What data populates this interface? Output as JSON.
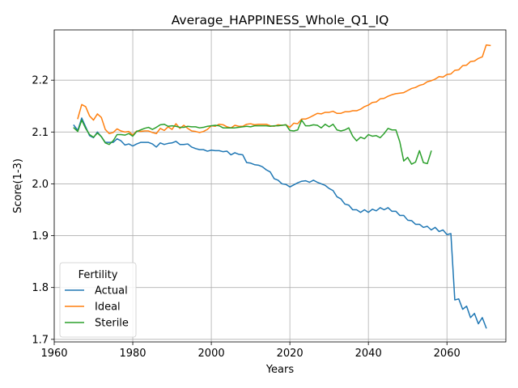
{
  "chart_data": {
    "type": "line",
    "title": "Average_HAPPINESS_Whole_Q1_IQ",
    "xlabel": "Years",
    "ylabel": "Score(1-3)",
    "xlim": [
      1960,
      2075
    ],
    "ylim": [
      1.695,
      2.297
    ],
    "grid": true,
    "legend_position": "lower left",
    "legend_title": "Fertility",
    "x_ticks": [
      1960,
      1980,
      2000,
      2020,
      2040,
      2060
    ],
    "y_ticks": [
      1.7,
      1.8,
      1.9,
      2.0,
      2.1,
      2.2
    ],
    "x_tick_labels": [
      "1960",
      "1980",
      "2000",
      "2020",
      "2040",
      "2060"
    ],
    "y_tick_labels": [
      "1.7",
      "1.8",
      "1.9",
      "2.0",
      "2.1",
      "2.2"
    ],
    "series": [
      {
        "name": "Actual",
        "color": "#1f77b4",
        "x_start": 1965,
        "values": [
          2.113,
          2.103,
          2.127,
          2.11,
          2.093,
          2.089,
          2.1,
          2.091,
          2.08,
          2.08,
          2.08,
          2.087,
          2.083,
          2.075,
          2.077,
          2.073,
          2.077,
          2.08,
          2.08,
          2.08,
          2.077,
          2.071,
          2.079,
          2.076,
          2.078,
          2.079,
          2.082,
          2.076,
          2.076,
          2.077,
          2.071,
          2.068,
          2.066,
          2.066,
          2.063,
          2.065,
          2.064,
          2.064,
          2.062,
          2.063,
          2.056,
          2.06,
          2.057,
          2.056,
          2.041,
          2.04,
          2.037,
          2.036,
          2.033,
          2.027,
          2.023,
          2.01,
          2.007,
          2.0,
          1.999,
          1.994,
          1.998,
          2.002,
          2.005,
          2.006,
          2.003,
          2.007,
          2.003,
          2.0,
          1.997,
          1.991,
          1.987,
          1.975,
          1.971,
          1.961,
          1.959,
          1.95,
          1.95,
          1.945,
          1.95,
          1.945,
          1.951,
          1.948,
          1.954,
          1.95,
          1.954,
          1.947,
          1.947,
          1.939,
          1.939,
          1.93,
          1.929,
          1.922,
          1.922,
          1.916,
          1.918,
          1.911,
          1.916,
          1.908,
          1.911,
          1.902,
          1.904,
          1.776,
          1.778,
          1.758,
          1.764,
          1.742,
          1.75,
          1.73,
          1.742,
          1.722
        ]
      },
      {
        "name": "Ideal",
        "color": "#ff7f0e",
        "x_start": 1966,
        "values": [
          2.126,
          2.153,
          2.149,
          2.131,
          2.123,
          2.135,
          2.128,
          2.105,
          2.097,
          2.099,
          2.106,
          2.102,
          2.1,
          2.101,
          2.094,
          2.102,
          2.101,
          2.102,
          2.102,
          2.099,
          2.097,
          2.107,
          2.103,
          2.11,
          2.105,
          2.116,
          2.107,
          2.113,
          2.107,
          2.102,
          2.101,
          2.099,
          2.101,
          2.105,
          2.112,
          2.111,
          2.115,
          2.114,
          2.11,
          2.108,
          2.113,
          2.111,
          2.111,
          2.115,
          2.116,
          2.114,
          2.115,
          2.115,
          2.115,
          2.112,
          2.111,
          2.114,
          2.113,
          2.114,
          2.109,
          2.117,
          2.116,
          2.125,
          2.125,
          2.128,
          2.132,
          2.136,
          2.135,
          2.138,
          2.138,
          2.14,
          2.136,
          2.136,
          2.139,
          2.139,
          2.141,
          2.141,
          2.144,
          2.149,
          2.152,
          2.157,
          2.158,
          2.164,
          2.165,
          2.169,
          2.172,
          2.174,
          2.175,
          2.176,
          2.18,
          2.184,
          2.186,
          2.19,
          2.192,
          2.197,
          2.199,
          2.202,
          2.207,
          2.206,
          2.211,
          2.212,
          2.219,
          2.22,
          2.228,
          2.229,
          2.236,
          2.237,
          2.242,
          2.245,
          2.268,
          2.267
        ]
      },
      {
        "name": "Sterile",
        "color": "#2ca02c",
        "x_start": 1965,
        "x_end": 2056,
        "values": [
          2.108,
          2.101,
          2.123,
          2.107,
          2.095,
          2.09,
          2.098,
          2.091,
          2.079,
          2.076,
          2.083,
          2.095,
          2.095,
          2.094,
          2.097,
          2.092,
          2.101,
          2.104,
          2.107,
          2.109,
          2.105,
          2.109,
          2.114,
          2.115,
          2.111,
          2.112,
          2.111,
          2.109,
          2.109,
          2.111,
          2.11,
          2.11,
          2.108,
          2.109,
          2.111,
          2.112,
          2.113,
          2.112,
          2.108,
          2.108,
          2.108,
          2.108,
          2.109,
          2.11,
          2.111,
          2.11,
          2.112,
          2.112,
          2.112,
          2.112,
          2.111,
          2.112,
          2.112,
          2.113,
          2.114,
          2.103,
          2.102,
          2.104,
          2.123,
          2.112,
          2.112,
          2.114,
          2.113,
          2.108,
          2.115,
          2.11,
          2.115,
          2.104,
          2.102,
          2.104,
          2.108,
          2.092,
          2.083,
          2.09,
          2.087,
          2.095,
          2.092,
          2.093,
          2.089,
          2.097,
          2.107,
          2.104,
          2.104,
          2.081,
          2.044,
          2.051,
          2.038,
          2.042,
          2.064,
          2.041,
          2.039,
          2.063
        ]
      }
    ]
  }
}
